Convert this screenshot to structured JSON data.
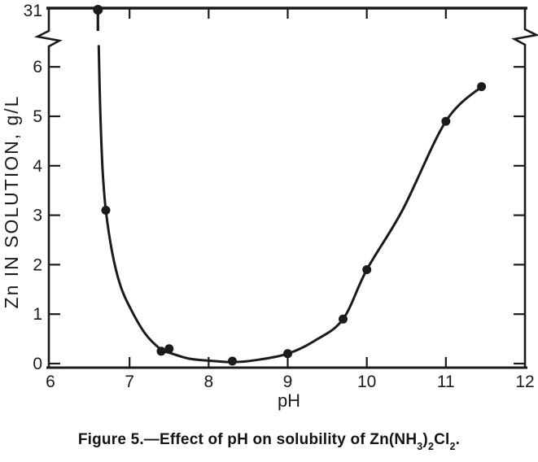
{
  "page": {
    "background": "#ffffff",
    "ink_color": "#1b1b1b"
  },
  "caption": {
    "main": "Figure 5.—Effect of pH on solubility of Zn(NH",
    "sub1": "3",
    "mid1": ")",
    "sub2": "2",
    "mid2": "Cl",
    "sub3": "2",
    "end": "."
  },
  "chart_data": {
    "type": "scatter",
    "title": "",
    "xlabel": "pH",
    "ylabel": "Zn IN SOLUTION, g/L",
    "xlim": [
      6,
      12
    ],
    "ylim": [
      0,
      6.5
    ],
    "x_ticks": [
      6,
      7,
      8,
      9,
      10,
      11,
      12
    ],
    "y_ticks": [
      0,
      1,
      2,
      3,
      4,
      5,
      6
    ],
    "y_axis_break": {
      "above_break_label": "31",
      "break_between": [
        6.5,
        31
      ]
    },
    "grid": false,
    "legend": false,
    "marker": "filled-circle",
    "points": [
      {
        "x": 6.6,
        "y": 31,
        "above_break": true
      },
      {
        "x": 6.7,
        "y": 3.1
      },
      {
        "x": 7.4,
        "y": 0.25
      },
      {
        "x": 7.5,
        "y": 0.3
      },
      {
        "x": 8.3,
        "y": 0.05
      },
      {
        "x": 9.0,
        "y": 0.2
      },
      {
        "x": 9.7,
        "y": 0.9
      },
      {
        "x": 10.0,
        "y": 1.9
      },
      {
        "x": 11.0,
        "y": 4.9
      },
      {
        "x": 11.45,
        "y": 5.6
      }
    ],
    "curve_points": [
      [
        6.61,
        6.42
      ],
      [
        6.63,
        5.1
      ],
      [
        6.66,
        3.9
      ],
      [
        6.7,
        3.1
      ],
      [
        6.78,
        2.25
      ],
      [
        6.88,
        1.6
      ],
      [
        7.0,
        1.15
      ],
      [
        7.2,
        0.6
      ],
      [
        7.4,
        0.28
      ],
      [
        7.5,
        0.22
      ],
      [
        7.75,
        0.1
      ],
      [
        8.0,
        0.06
      ],
      [
        8.3,
        0.03
      ],
      [
        8.6,
        0.07
      ],
      [
        9.0,
        0.2
      ],
      [
        9.35,
        0.47
      ],
      [
        9.7,
        0.9
      ],
      [
        10.0,
        1.9
      ],
      [
        10.45,
        3.1
      ],
      [
        11.0,
        4.9
      ],
      [
        11.45,
        5.6
      ]
    ]
  }
}
